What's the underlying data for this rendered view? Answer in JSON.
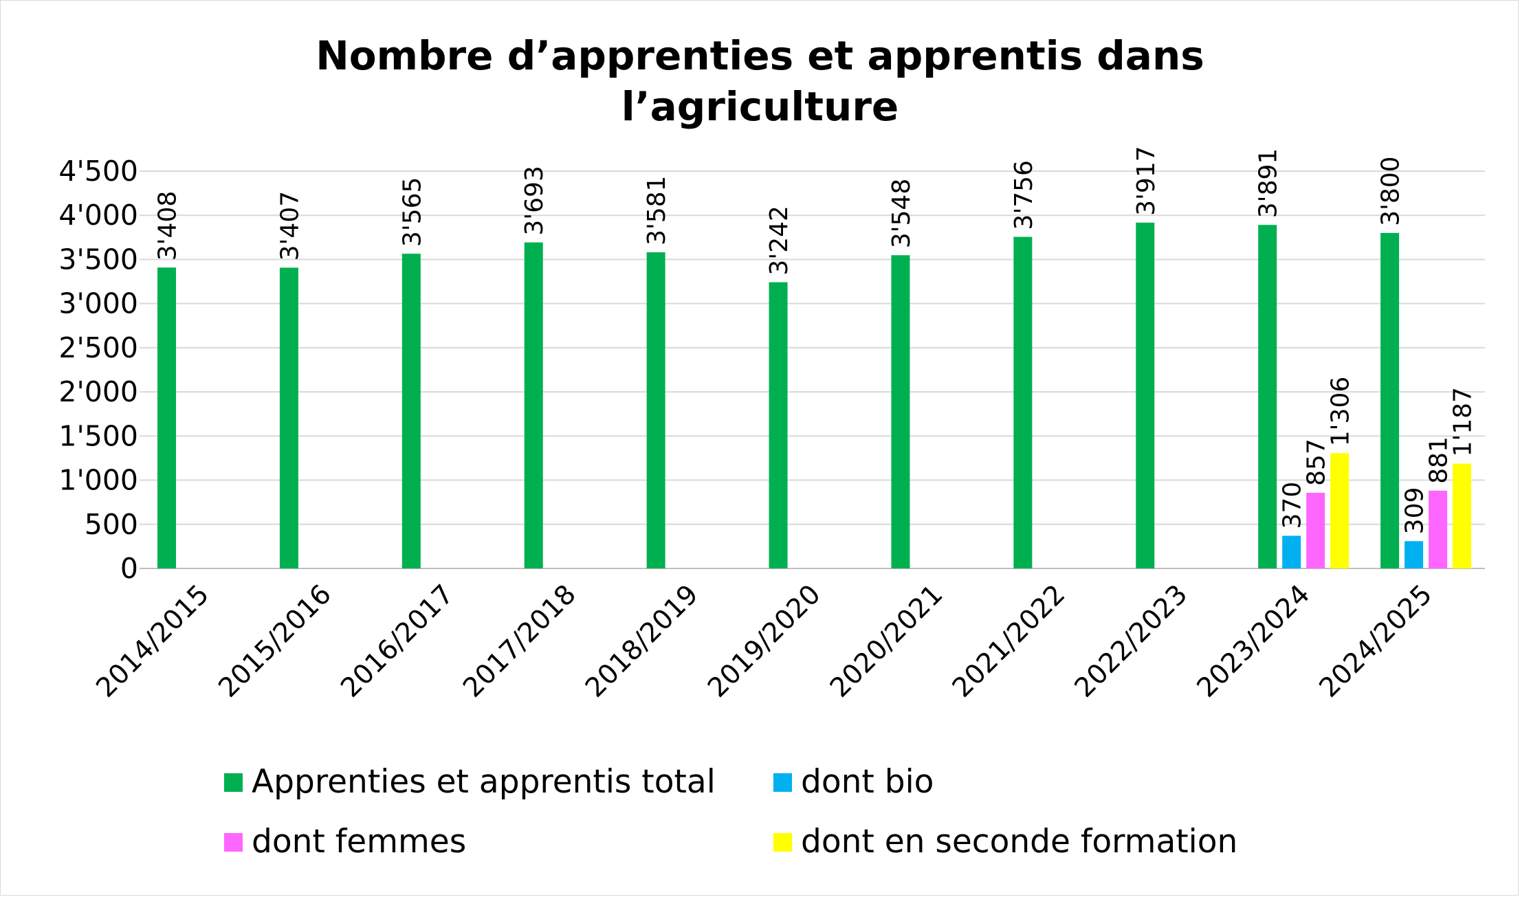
{
  "chart_data": {
    "type": "bar",
    "title": "Nombre d’apprenties et apprentis dans\nl’agriculture",
    "xlabel": "",
    "ylabel": "",
    "ylim": [
      0,
      4500
    ],
    "yticks": [
      0,
      500,
      1000,
      1500,
      2000,
      2500,
      3000,
      3500,
      4000,
      4500
    ],
    "ytick_labels": [
      "0",
      "500",
      "1'000",
      "1'500",
      "2'000",
      "2'500",
      "3'000",
      "3'500",
      "4'000",
      "4'500"
    ],
    "grid": true,
    "legend_position": "bottom",
    "categories": [
      "2014/2015",
      "2015/2016",
      "2016/2017",
      "2017/2018",
      "2018/2019",
      "2019/2020",
      "2020/2021",
      "2021/2022",
      "2022/2023",
      "2023/2024",
      "2024/2025"
    ],
    "series": [
      {
        "name": "Apprenties et apprentis total",
        "color": "#00b050",
        "values": [
          3408,
          3407,
          3565,
          3693,
          3581,
          3242,
          3548,
          3756,
          3917,
          3891,
          3800
        ],
        "labels": [
          "3'408",
          "3'407",
          "3'565",
          "3'693",
          "3'581",
          "3'242",
          "3'548",
          "3'756",
          "3'917",
          "3'891",
          "3'800"
        ]
      },
      {
        "name": "dont bio",
        "color": "#00b0f0",
        "values": [
          null,
          null,
          null,
          null,
          null,
          null,
          null,
          null,
          null,
          370,
          309
        ],
        "labels": [
          "",
          "",
          "",
          "",
          "",
          "",
          "",
          "",
          "",
          "370",
          "309"
        ]
      },
      {
        "name": "dont femmes",
        "color": "#ff66ff",
        "values": [
          null,
          null,
          null,
          null,
          null,
          null,
          null,
          null,
          null,
          857,
          881
        ],
        "labels": [
          "",
          "",
          "",
          "",
          "",
          "",
          "",
          "",
          "",
          "857",
          "881"
        ]
      },
      {
        "name": "dont en seconde formation",
        "color": "#ffff00",
        "values": [
          null,
          null,
          null,
          null,
          null,
          null,
          null,
          null,
          null,
          1306,
          1187
        ],
        "labels": [
          "",
          "",
          "",
          "",
          "",
          "",
          "",
          "",
          "",
          "1'306",
          "1'187"
        ]
      }
    ]
  }
}
